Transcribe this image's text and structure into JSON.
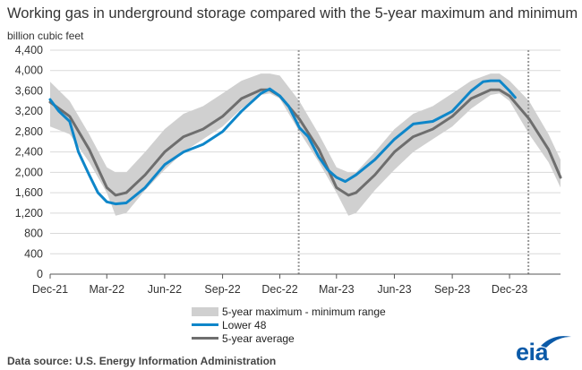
{
  "title": "Working gas in underground  storage compared with the 5-year maximum and minimum",
  "units": "billion cubic feet",
  "source": "Data source:  U.S. Energy Information Administration",
  "logo_text": "eia",
  "colors": {
    "range": "#d0d0d0",
    "lower48": "#0e86c9",
    "avg": "#6e6e6e",
    "grid": "#d9d9d9",
    "divider": "#999999",
    "logo": "#0b5aa8"
  },
  "legend": [
    {
      "key": "range",
      "label": "5-year maximum - minimum range"
    },
    {
      "key": "lower48",
      "label": "Lower 48"
    },
    {
      "key": "avg",
      "label": "5-year average"
    }
  ],
  "chart_data": {
    "type": "line",
    "title": "Working gas in underground  storage compared with the 5-year maximum and minimum",
    "ylabel": "billion cubic feet",
    "xlabel": "",
    "ylim": [
      0,
      4400
    ],
    "yticks": [
      0,
      400,
      800,
      1200,
      1600,
      2000,
      2400,
      2800,
      3200,
      3600,
      4000,
      4400
    ],
    "ytick_labels": [
      "0",
      "400",
      "800",
      "1,200",
      "1,600",
      "2,000",
      "2,400",
      "2,800",
      "3,200",
      "3,600",
      "4,000",
      "4,400"
    ],
    "xlim": [
      "2021-12-01",
      "2024-02-20"
    ],
    "xticks": [
      "2021-12-01",
      "2022-03-01",
      "2022-06-01",
      "2022-09-01",
      "2022-12-01",
      "2023-03-01",
      "2023-06-01",
      "2023-09-01",
      "2023-12-01"
    ],
    "xtick_labels": [
      "Dec-21",
      "Mar-22",
      "Jun-22",
      "Sep-22",
      "Dec-22",
      "Mar-23",
      "Jun-23",
      "Sep-23",
      "Dec-23"
    ],
    "dividers": [
      "2022-12-31",
      "2023-12-31"
    ],
    "grid": "horizontal",
    "legend_position": "bottom",
    "series": [
      {
        "name": "5-year maximum - minimum range",
        "kind": "band",
        "x": [
          "2021-12-01",
          "2022-01-01",
          "2022-02-01",
          "2022-03-01",
          "2022-03-15",
          "2022-04-01",
          "2022-05-01",
          "2022-06-01",
          "2022-07-01",
          "2022-08-01",
          "2022-09-01",
          "2022-10-01",
          "2022-11-01",
          "2022-11-15",
          "2022-12-01",
          "2023-01-01",
          "2023-02-01",
          "2023-03-01",
          "2023-03-20",
          "2023-04-01",
          "2023-05-01",
          "2023-06-01",
          "2023-07-01",
          "2023-08-01",
          "2023-09-01",
          "2023-10-01",
          "2023-11-01",
          "2023-11-15",
          "2023-12-01",
          "2024-01-01",
          "2024-02-01",
          "2024-02-20"
        ],
        "max": [
          3780,
          3400,
          2750,
          2100,
          2000,
          2000,
          2400,
          2850,
          3150,
          3300,
          3550,
          3800,
          3940,
          3940,
          3900,
          3400,
          2750,
          2100,
          2000,
          2000,
          2400,
          2850,
          3150,
          3300,
          3550,
          3800,
          3940,
          3940,
          3800,
          3400,
          2750,
          2250
        ],
        "min": [
          2900,
          2750,
          2200,
          1600,
          1150,
          1200,
          1650,
          2050,
          2400,
          2650,
          2900,
          3250,
          3520,
          3550,
          3450,
          2800,
          2200,
          1600,
          1150,
          1200,
          1650,
          2050,
          2400,
          2650,
          2900,
          3250,
          3520,
          3550,
          3400,
          2750,
          2200,
          1700
        ]
      },
      {
        "name": "Lower 48",
        "x": [
          "2021-12-01",
          "2021-12-15",
          "2022-01-01",
          "2022-01-15",
          "2022-02-01",
          "2022-02-15",
          "2022-03-01",
          "2022-03-15",
          "2022-04-01",
          "2022-05-01",
          "2022-06-01",
          "2022-07-01",
          "2022-08-01",
          "2022-09-01",
          "2022-10-01",
          "2022-11-01",
          "2022-11-15",
          "2022-12-01",
          "2022-12-15",
          "2023-01-01",
          "2023-01-15",
          "2023-02-01",
          "2023-02-15",
          "2023-03-01",
          "2023-03-15",
          "2023-04-01",
          "2023-05-01",
          "2023-06-01",
          "2023-07-01",
          "2023-08-01",
          "2023-09-01",
          "2023-10-01",
          "2023-10-20",
          "2023-11-01",
          "2023-11-15",
          "2023-12-01",
          "2023-12-10"
        ],
        "values": [
          3430,
          3200,
          3000,
          2400,
          1950,
          1600,
          1420,
          1380,
          1400,
          1700,
          2150,
          2400,
          2550,
          2800,
          3200,
          3550,
          3640,
          3500,
          3300,
          2880,
          2700,
          2300,
          2050,
          1900,
          1820,
          1950,
          2250,
          2650,
          2950,
          3000,
          3200,
          3600,
          3780,
          3800,
          3800,
          3600,
          3470
        ]
      },
      {
        "name": "5-year average",
        "x": [
          "2021-12-01",
          "2022-01-01",
          "2022-02-01",
          "2022-03-01",
          "2022-03-15",
          "2022-04-01",
          "2022-05-01",
          "2022-06-01",
          "2022-07-01",
          "2022-08-01",
          "2022-09-01",
          "2022-10-01",
          "2022-11-01",
          "2022-11-15",
          "2022-12-01",
          "2023-01-01",
          "2023-02-01",
          "2023-03-01",
          "2023-03-20",
          "2023-04-01",
          "2023-05-01",
          "2023-06-01",
          "2023-07-01",
          "2023-08-01",
          "2023-09-01",
          "2023-10-01",
          "2023-11-01",
          "2023-11-15",
          "2023-12-01",
          "2024-01-01",
          "2024-02-01",
          "2024-02-20"
        ],
        "values": [
          3380,
          3100,
          2450,
          1700,
          1550,
          1600,
          1950,
          2400,
          2700,
          2850,
          3100,
          3450,
          3620,
          3620,
          3500,
          3050,
          2450,
          1700,
          1550,
          1600,
          1950,
          2400,
          2700,
          2850,
          3100,
          3450,
          3620,
          3620,
          3500,
          3050,
          2450,
          1900
        ]
      }
    ]
  }
}
